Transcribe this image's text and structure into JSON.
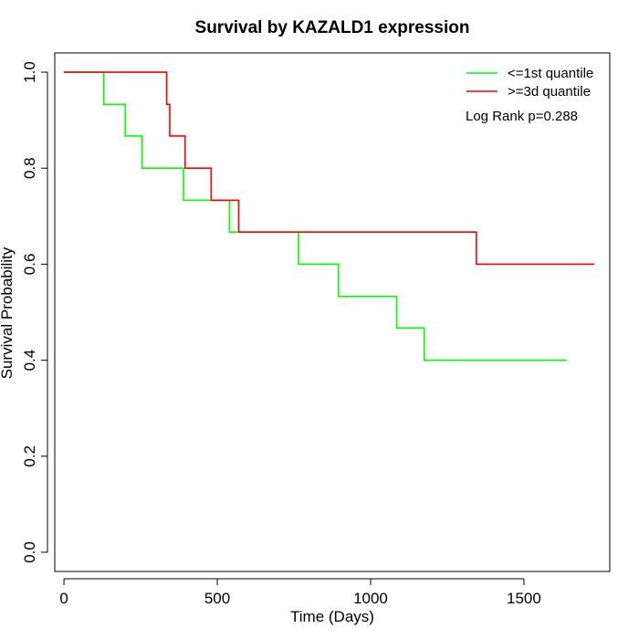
{
  "chart_data": {
    "type": "line",
    "title": "Survival by KAZALD1 expression",
    "xlabel": "Time (Days)",
    "ylabel": "Survival Probability",
    "xlim": [
      -30,
      1780
    ],
    "ylim": [
      -0.04,
      1.04
    ],
    "x_ticks": [
      0,
      500,
      1000,
      1500
    ],
    "y_ticks": [
      0.0,
      0.2,
      0.4,
      0.6,
      0.8,
      1.0
    ],
    "x_tick_labels": [
      "0",
      "500",
      "1000",
      "1500"
    ],
    "y_tick_labels": [
      "0.0",
      "0.2",
      "0.4",
      "0.6",
      "0.8",
      "1.0"
    ],
    "grid": false,
    "legend_position": "top-right",
    "annotation": "Log Rank p=0.288",
    "series": [
      {
        "name": "<=1st quantile",
        "color": "#00ff00",
        "x": [
          0,
          130,
          200,
          255,
          390,
          540,
          765,
          895,
          1085,
          1175,
          1640
        ],
        "y": [
          1.0,
          0.933,
          0.867,
          0.8,
          0.733,
          0.667,
          0.6,
          0.533,
          0.467,
          0.4,
          0.4
        ]
      },
      {
        "name": ">=3d quantile",
        "color": "#ff0000",
        "x": [
          0,
          335,
          345,
          395,
          480,
          570,
          1345,
          1730
        ],
        "y": [
          1.0,
          0.933,
          0.867,
          0.8,
          0.733,
          0.667,
          0.6,
          0.6
        ]
      }
    ]
  }
}
